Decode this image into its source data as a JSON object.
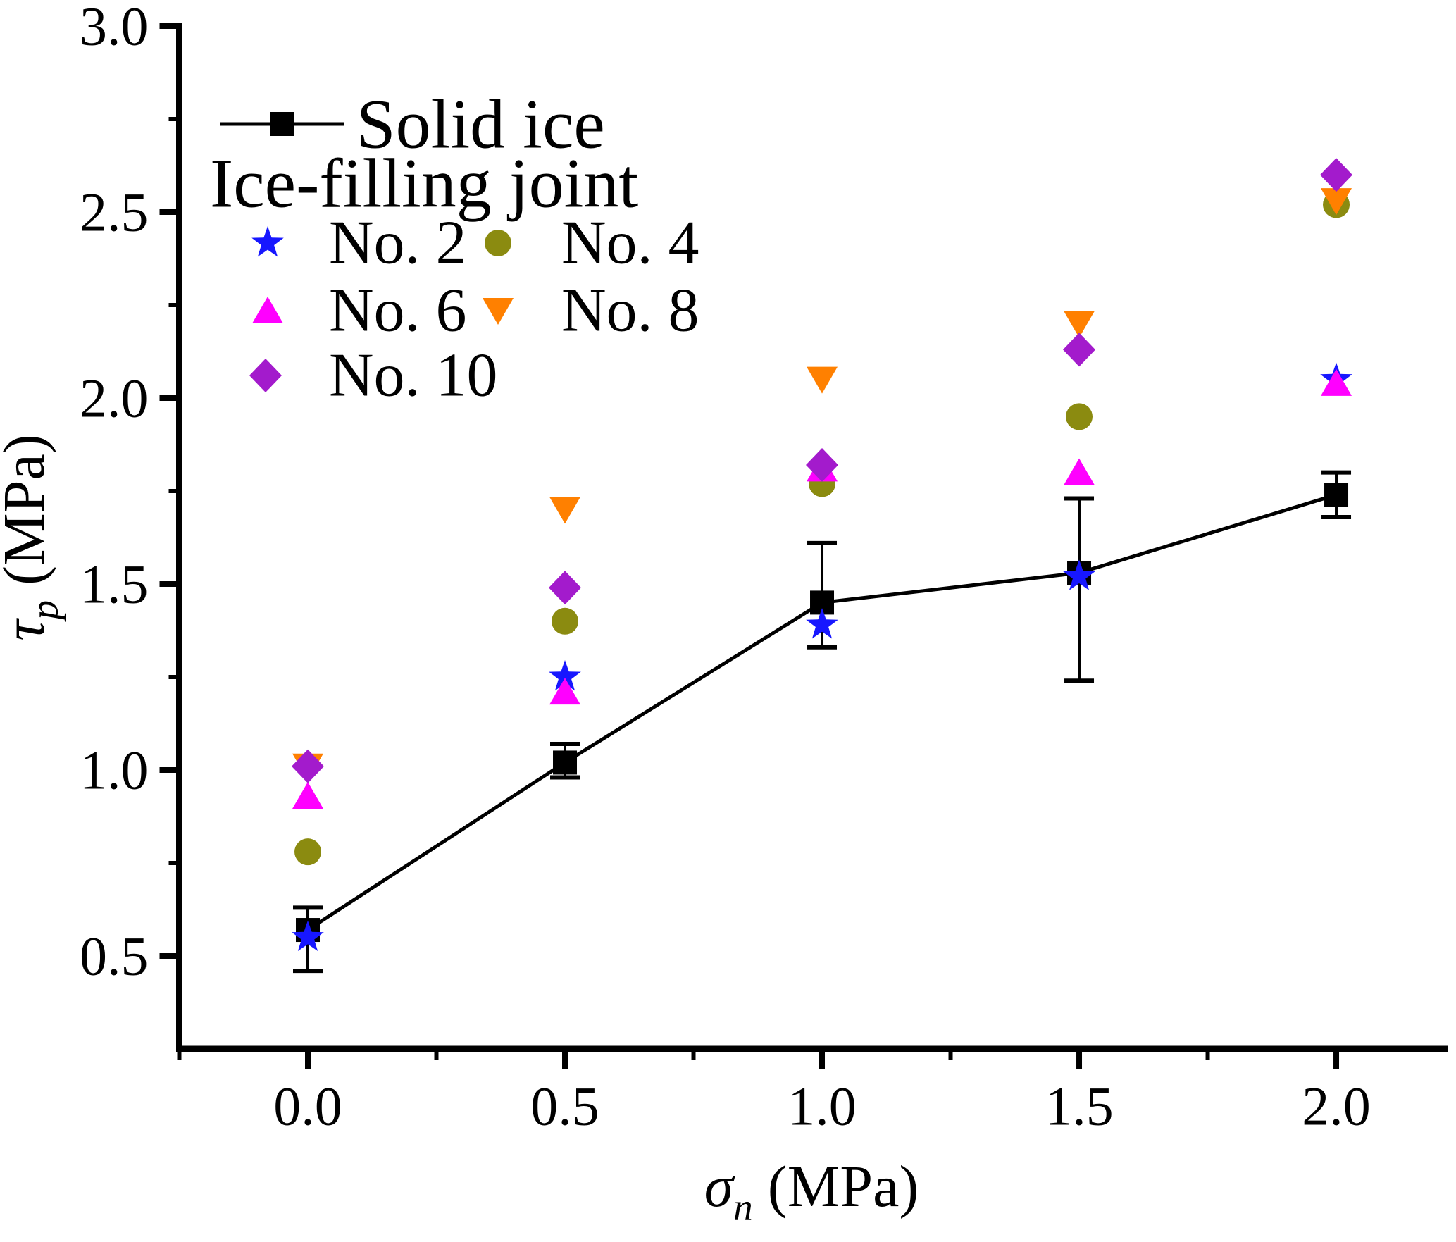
{
  "figure": {
    "background": "#FFFFFF"
  },
  "chart_data": {
    "type": "scatter",
    "title": "",
    "xlabel": {
      "symbol": "σ",
      "subscript": "n",
      "unit": " (MPa)"
    },
    "ylabel": {
      "symbol": "τ",
      "subscript": "p",
      "unit": " (MPa)"
    },
    "xlim": [
      -0.25,
      2.2164
    ],
    "ylim": [
      0.25,
      3.0
    ],
    "grid": false,
    "x": [
      0.0,
      0.5,
      1.0,
      1.5,
      2.0
    ],
    "x_major_ticks": [
      0.0,
      0.5,
      1.0,
      1.5,
      2.0
    ],
    "x_tick_labels": [
      "0.0",
      "0.5",
      "1.0",
      "1.5",
      "2.0"
    ],
    "x_minor_ticks": [
      -0.25,
      0.25,
      0.75,
      1.25,
      1.75
    ],
    "y_major_ticks": [
      0.5,
      1.0,
      1.5,
      2.0,
      2.5,
      3.0
    ],
    "y_tick_labels": [
      "0.5",
      "1.0",
      "1.5",
      "2.0",
      "2.5",
      "3.0"
    ],
    "y_minor_ticks": [
      0.75,
      1.25,
      1.75,
      2.25,
      2.75
    ],
    "legend": {
      "position": "top-left-inside",
      "group_label": "Ice-filling joint"
    },
    "series": [
      {
        "name": "Solid ice",
        "marker": "square",
        "color": "#000000",
        "line": true,
        "values": [
          0.57,
          1.02,
          1.45,
          1.53,
          1.74
        ],
        "error_plus": [
          0.06,
          0.05,
          0.16,
          0.2,
          0.06
        ],
        "error_minus": [
          0.11,
          0.04,
          0.12,
          0.29,
          0.06
        ]
      },
      {
        "name": "No. 2",
        "marker": "star",
        "color": "#1717FF",
        "line": false,
        "values": [
          0.55,
          1.25,
          1.39,
          1.52,
          2.05
        ]
      },
      {
        "name": "No. 4",
        "marker": "circle",
        "color": "#8B8B10",
        "line": false,
        "values": [
          0.78,
          1.4,
          1.77,
          1.95,
          2.52
        ]
      },
      {
        "name": "No. 6",
        "marker": "triangle-up",
        "color": "#FF00FF",
        "line": false,
        "values": [
          0.93,
          1.21,
          1.81,
          1.8,
          2.04
        ]
      },
      {
        "name": "No. 8",
        "marker": "triangle-down",
        "color": "#FF8000",
        "line": false,
        "values": [
          1.01,
          1.7,
          2.05,
          2.2,
          2.53
        ]
      },
      {
        "name": "No. 10",
        "marker": "diamond",
        "color": "#A31BCC",
        "text_color": "#9A1DB0",
        "line": false,
        "values": [
          1.01,
          1.49,
          1.82,
          2.13,
          2.6
        ]
      }
    ]
  }
}
